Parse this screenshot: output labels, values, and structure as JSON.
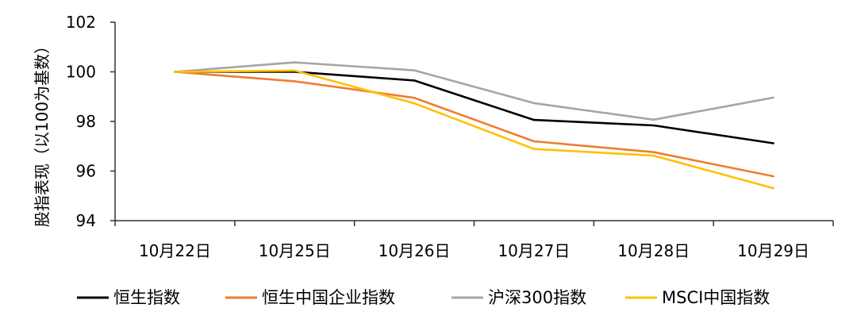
{
  "chart_data": {
    "type": "line",
    "title": "",
    "xlabel": "",
    "ylabel": "股指表现（以100为基数）",
    "categories": [
      "10月22日",
      "10月25日",
      "10月26日",
      "10月27日",
      "10月28日",
      "10月29日"
    ],
    "ylim": [
      94,
      102
    ],
    "yticks": [
      94,
      96,
      98,
      100,
      102
    ],
    "grid": false,
    "legend": "bottom",
    "series": [
      {
        "name": "恒生指数",
        "color": "#000000",
        "values": [
          100,
          100.0,
          99.65,
          98.06,
          97.84,
          97.12
        ]
      },
      {
        "name": "恒生中国企业指数",
        "color": "#ED7D31",
        "values": [
          100,
          99.62,
          98.95,
          97.2,
          96.76,
          95.79
        ]
      },
      {
        "name": "沪深300指数",
        "color": "#A5A5A5",
        "values": [
          100,
          100.38,
          100.06,
          98.74,
          98.07,
          98.96
        ]
      },
      {
        "name": "MSCI中国指数",
        "color": "#FFC000",
        "values": [
          100,
          100.05,
          98.73,
          96.89,
          96.62,
          95.31
        ]
      }
    ]
  }
}
